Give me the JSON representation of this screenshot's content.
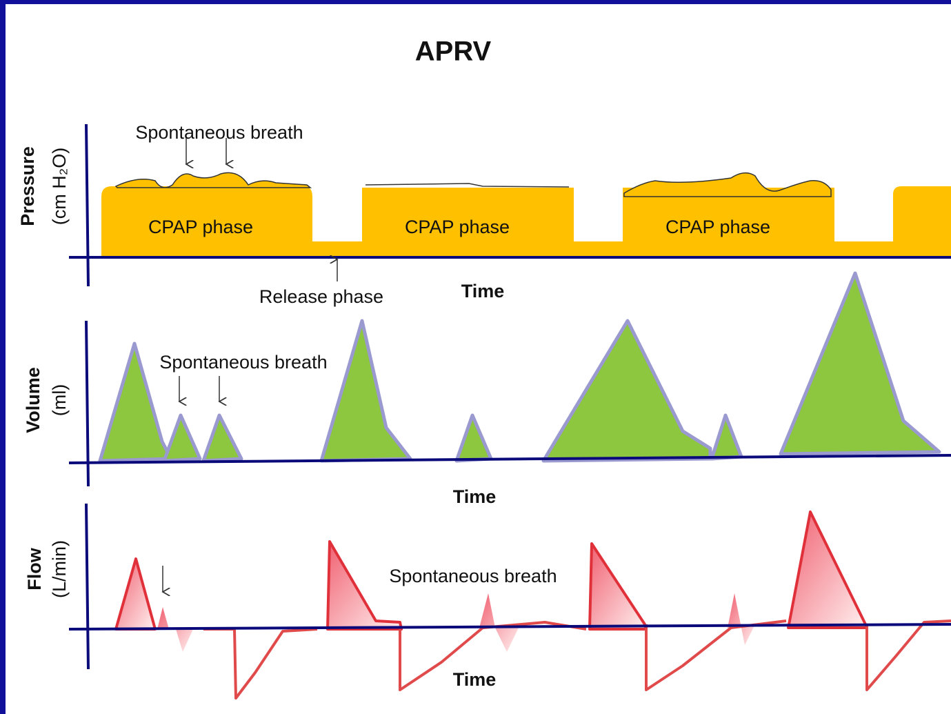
{
  "title": "APRV",
  "panels": [
    {
      "y_label": "Pressure",
      "y_unit": "(cm H₂O)",
      "x_label": "Time",
      "annotation": "Spontaneous breath",
      "release": "Release phase",
      "phases": [
        "CPAP phase",
        "CPAP phase",
        "CPAP phase"
      ]
    },
    {
      "y_label": "Volume",
      "y_unit": "(ml)",
      "x_label": "Time",
      "annotation": "Spontaneous breath"
    },
    {
      "y_label": "Flow",
      "y_unit": "(L/min)",
      "x_label": "Time",
      "annotation": "Spontaneous breath"
    }
  ]
}
